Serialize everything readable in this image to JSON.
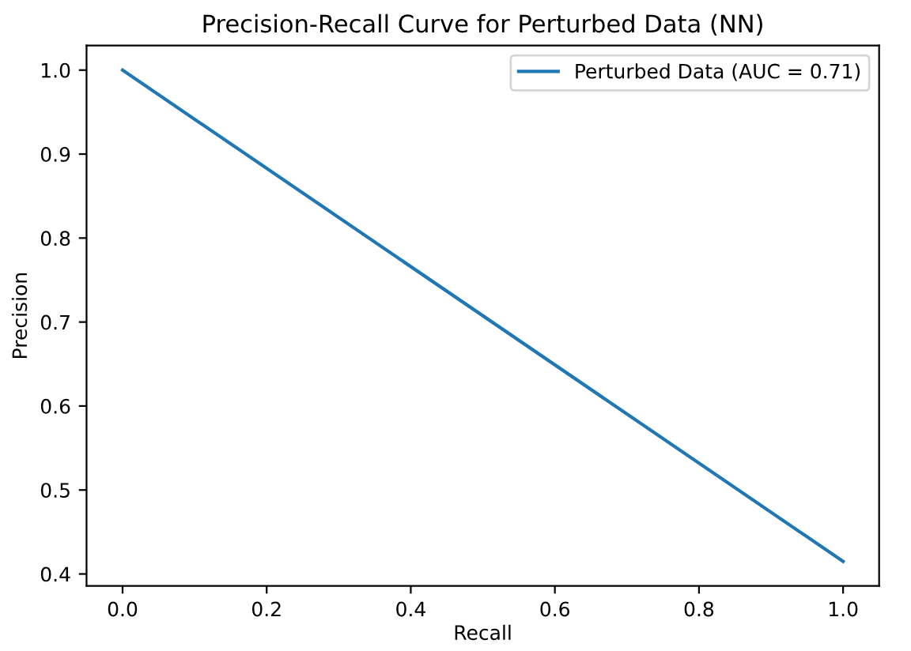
{
  "chart_data": {
    "type": "line",
    "title": "Precision-Recall Curve for Perturbed Data (NN)",
    "xlabel": "Recall",
    "ylabel": "Precision",
    "x": [
      0.0,
      1.0
    ],
    "series": [
      {
        "name": "Perturbed Data (AUC = 0.71)",
        "color": "#1f77b4",
        "values": [
          1.0,
          0.415
        ]
      }
    ],
    "xlim": [
      -0.05,
      1.05
    ],
    "ylim": [
      0.3858,
      1.0292
    ],
    "xticks": [
      {
        "value": 0.0,
        "label": "0.0"
      },
      {
        "value": 0.2,
        "label": "0.2"
      },
      {
        "value": 0.4,
        "label": "0.4"
      },
      {
        "value": 0.6,
        "label": "0.6"
      },
      {
        "value": 0.8,
        "label": "0.8"
      },
      {
        "value": 1.0,
        "label": "1.0"
      }
    ],
    "yticks": [
      {
        "value": 0.4,
        "label": "0.4"
      },
      {
        "value": 0.5,
        "label": "0.5"
      },
      {
        "value": 0.6,
        "label": "0.6"
      },
      {
        "value": 0.7,
        "label": "0.7"
      },
      {
        "value": 0.8,
        "label": "0.8"
      },
      {
        "value": 0.9,
        "label": "0.9"
      },
      {
        "value": 1.0,
        "label": "1.0"
      }
    ],
    "legend": "top right",
    "grid": false,
    "marker": "none",
    "line_style": "solid"
  }
}
